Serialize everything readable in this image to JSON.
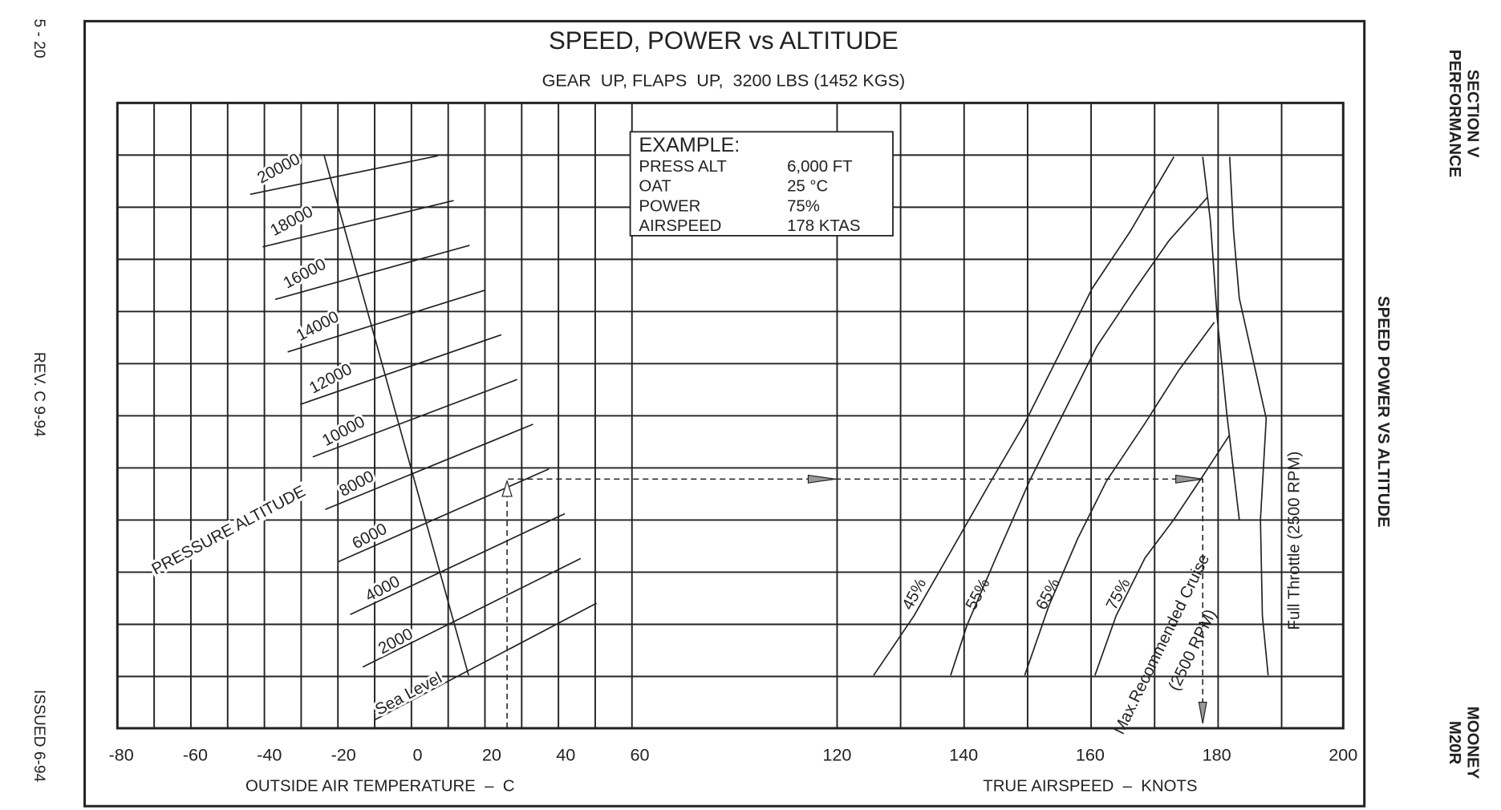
{
  "page": "5 - 20",
  "revision": "REV. C 9-94",
  "issued": "ISSUED 6-94",
  "header": {
    "section": "SECTION V",
    "subsection": "PERFORMANCE"
  },
  "side_title": "SPEED POWER VS ALTITUDE",
  "footer": {
    "make": "MOONEY",
    "model": "M20R"
  },
  "chart": {
    "title": "SPEED, POWER vs ALTITUDE",
    "subtitle": "GEAR  UP, FLAPS  UP,  3200 LBS (1452 KGS)",
    "example": {
      "heading": "EXAMPLE:",
      "rows": [
        [
          "PRESS ALT",
          "6,000  FT"
        ],
        [
          "OAT",
          "25 °C"
        ],
        [
          "POWER",
          "75%"
        ],
        [
          "AIRSPEED",
          "178  KTAS"
        ]
      ]
    },
    "oat_axis": {
      "label": "OUTSIDE AIR TEMPERATURE  –  C",
      "ticks": [
        "-80",
        "-60",
        "-40",
        "-20",
        "0",
        "20",
        "40",
        "60"
      ]
    },
    "tas_axis": {
      "label": "TRUE AIRSPEED  –  KNOTS",
      "ticks": [
        "120",
        "140",
        "160",
        "180",
        "200"
      ]
    },
    "altitude_label": "PRESSURE ALTITUDE",
    "altitudes": [
      "Sea Level",
      "2000",
      "4000",
      "6000",
      "8000",
      "10000",
      "12000",
      "14000",
      "16000",
      "18000",
      "20000"
    ],
    "power_labels": [
      "45%",
      "55%",
      "65%",
      "75%"
    ],
    "max_cruise": [
      "Max.Recommended Cruise",
      "(2500 RPM)"
    ],
    "full_throttle": "Full Throttle (2500 RPM)"
  }
}
